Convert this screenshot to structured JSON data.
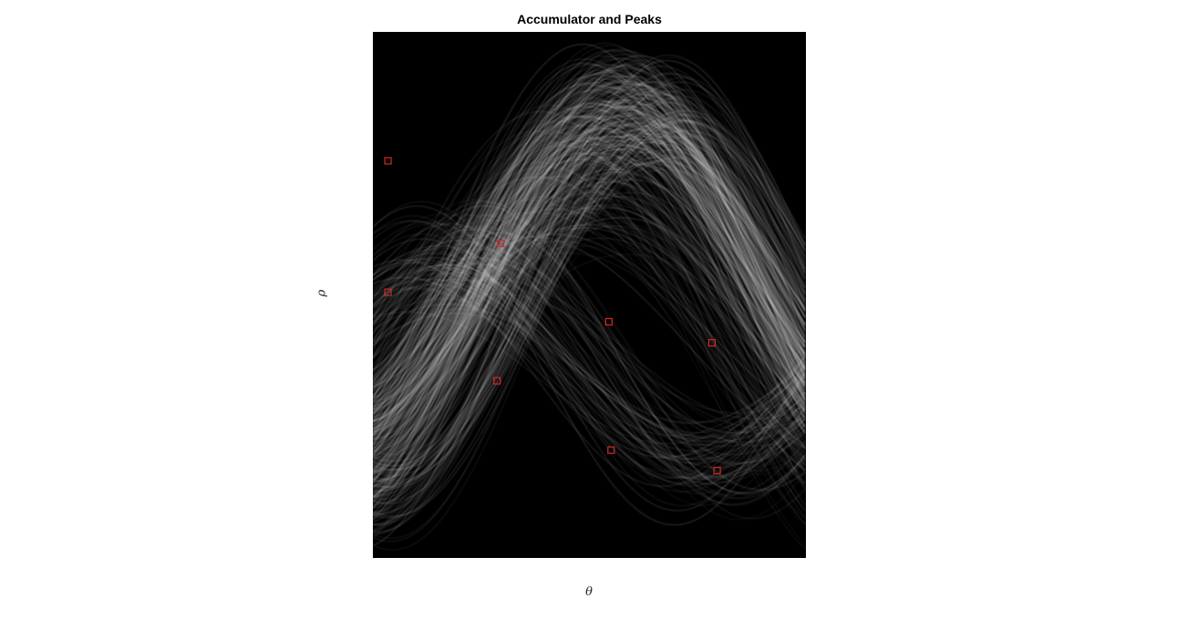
{
  "chart_data": {
    "type": "heatmap",
    "title": "Accumulator and Peaks",
    "xlabel": "θ",
    "ylabel": "ρ",
    "colormap": "gray",
    "axes_visible": false,
    "grid": false,
    "peak_marker": {
      "shape": "square",
      "color": "#d62728"
    },
    "peaks": [
      {
        "x": 0.035,
        "y": 0.245
      },
      {
        "x": 0.035,
        "y": 0.495
      },
      {
        "x": 0.295,
        "y": 0.402
      },
      {
        "x": 0.287,
        "y": 0.663
      },
      {
        "x": 0.545,
        "y": 0.551
      },
      {
        "x": 0.55,
        "y": 0.795
      },
      {
        "x": 0.783,
        "y": 0.591
      },
      {
        "x": 0.795,
        "y": 0.834
      }
    ]
  }
}
